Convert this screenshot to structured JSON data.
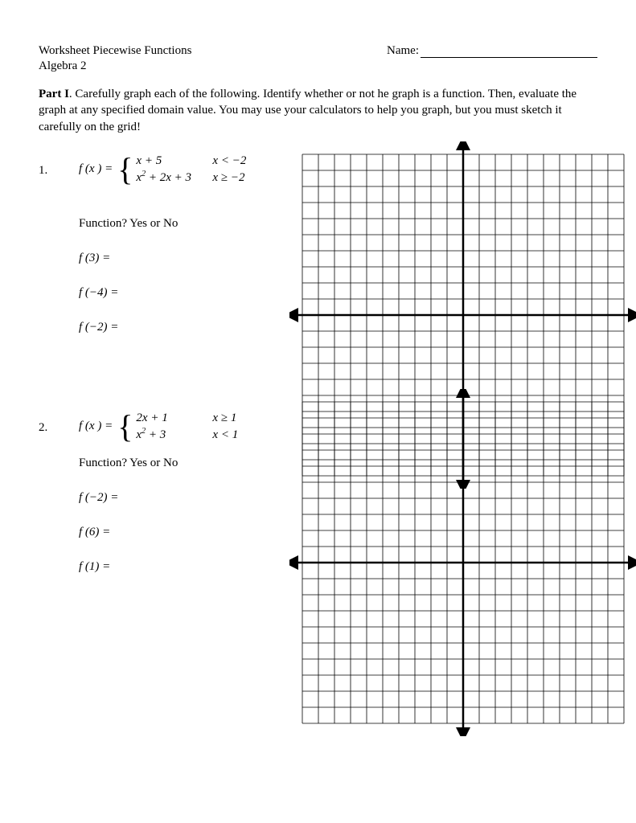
{
  "header": {
    "title": "Worksheet Piecewise Functions",
    "course": "Algebra 2",
    "name_label": "Name:"
  },
  "part": {
    "label": "Part I",
    "text": ".  Carefully graph each of the following.  Identify whether or not he graph is a function.  Then, evaluate the graph at any specified domain value.  You may use your calculators to help you graph, but you must sketch it carefully on the grid!"
  },
  "problems": [
    {
      "num": "1.",
      "fx_label": "f (x ) =",
      "cases": [
        {
          "expr": "x + 5",
          "cond": "x < −2"
        },
        {
          "expr": "x² + 2x + 3",
          "cond": "x ≥ −2"
        }
      ],
      "function_q": "Function?   Yes   or   No",
      "evals": [
        "f (3) =",
        "f (−4) =",
        "f (−2) ="
      ]
    },
    {
      "num": "2.",
      "fx_label": "f (x ) =",
      "cases": [
        {
          "expr": "2x + 1",
          "cond": "x ≥ 1"
        },
        {
          "expr": "x² + 3",
          "cond": "x < 1"
        }
      ],
      "function_q": "Function?   Yes   or   No",
      "evals": [
        "f (−2) =",
        "f (6) =",
        "f (1) ="
      ]
    }
  ],
  "grid": {
    "cells": 20,
    "cell_size": 20,
    "axis_color": "#000000",
    "line_color": "#000000",
    "line_width": 0.8,
    "axis_width": 2.5,
    "arrow_size": 9
  }
}
